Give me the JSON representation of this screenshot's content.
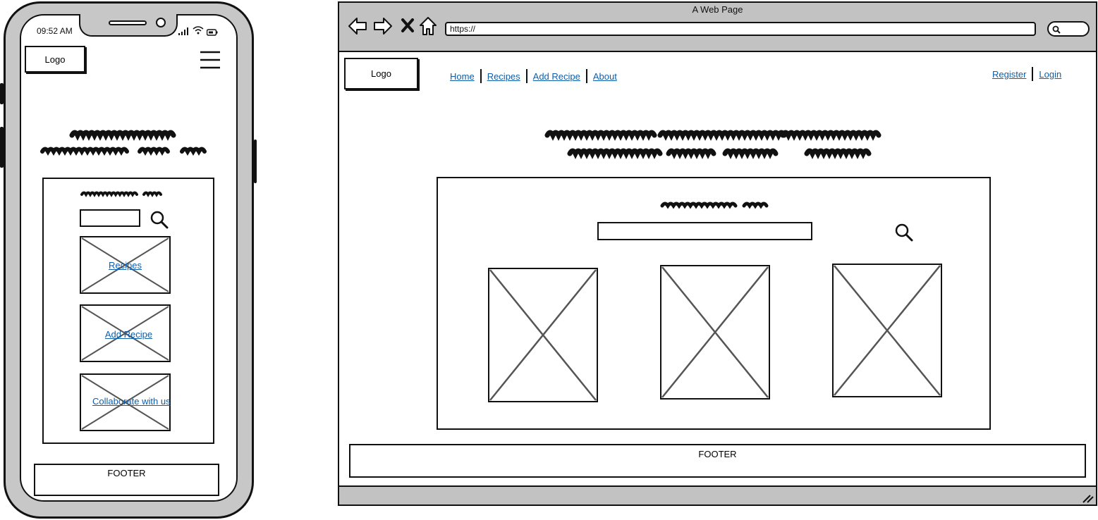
{
  "phone": {
    "status_time": "09:52 AM",
    "logo_label": "Logo",
    "menu_icon": "hamburger-menu-icon",
    "search_icon": "search-icon",
    "cards": [
      {
        "label": "Recipes"
      },
      {
        "label": "Add Recipe"
      },
      {
        "label": "Collaborate with us"
      }
    ],
    "footer_label": "FOOTER"
  },
  "browser": {
    "window_title": "A Web Page",
    "url": "https://",
    "nav_icons": [
      "back-icon",
      "forward-icon",
      "close-icon",
      "home-icon"
    ],
    "logo_label": "Logo",
    "nav_links": [
      {
        "label": "Home"
      },
      {
        "label": "Recipes"
      },
      {
        "label": "Add Recipe"
      },
      {
        "label": "About"
      }
    ],
    "auth_links": [
      {
        "label": "Register"
      },
      {
        "label": "Login"
      }
    ],
    "search_icon": "search-icon",
    "footer_label": "FOOTER"
  },
  "colors": {
    "link": "#0e5eab",
    "frame": "#c2c2c2",
    "placeholder_cross": "#555555"
  }
}
